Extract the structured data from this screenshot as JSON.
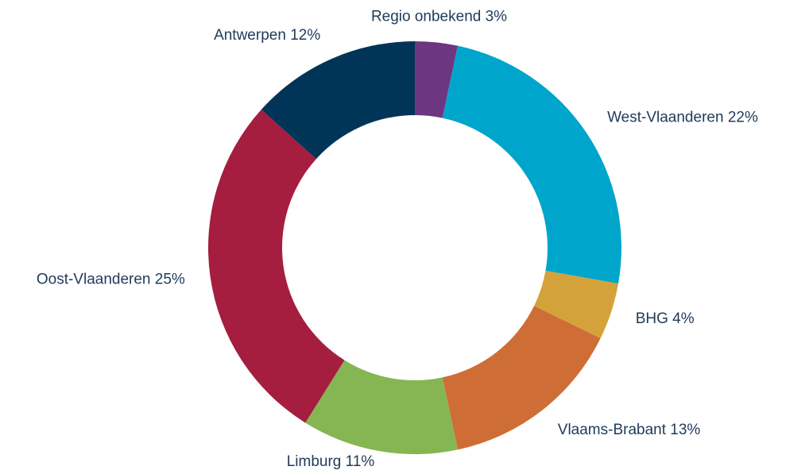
{
  "chart_data": {
    "type": "pie",
    "categories": [
      "Regio onbekend",
      "West-Vlaanderen",
      "BHG",
      "Vlaams-Brabant",
      "Limburg",
      "Oost-Vlaanderen",
      "Antwerpen"
    ],
    "values": [
      3,
      22,
      4,
      13,
      11,
      25,
      12
    ],
    "value_labels": [
      "3%",
      "22%",
      "4%",
      "13%",
      "11%",
      "25%",
      "12%"
    ],
    "colors": [
      "#6d3680",
      "#00a5cc",
      "#d4a23a",
      "#cf6d36",
      "#86b553",
      "#a51d3f",
      "#003557"
    ],
    "donut": true
  }
}
